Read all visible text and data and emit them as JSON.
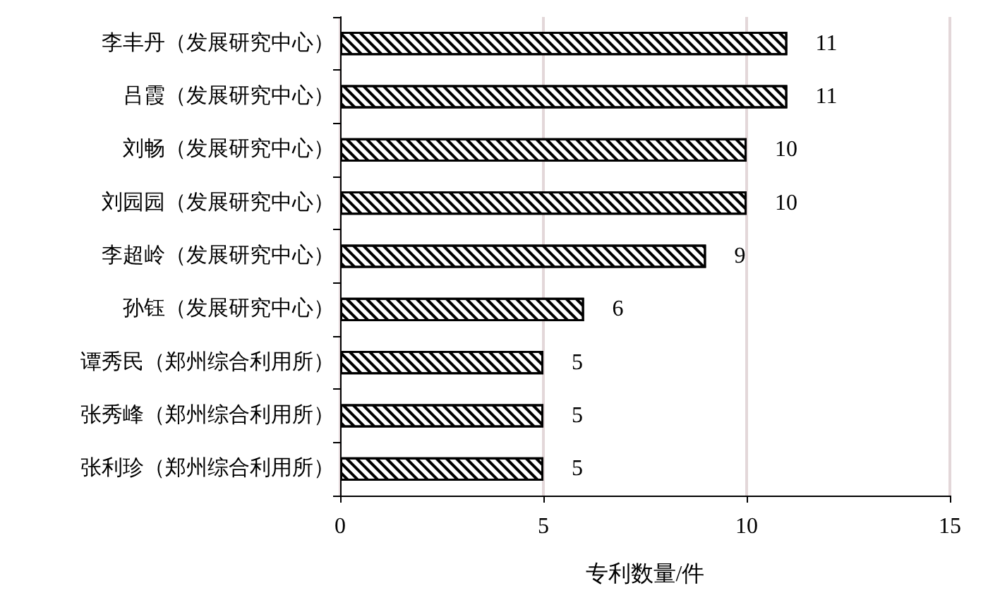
{
  "chart_data": {
    "type": "bar",
    "orientation": "horizontal",
    "categories": [
      "李丰丹（发展研究中心）",
      "吕霞（发展研究中心）",
      "刘畅（发展研究中心）",
      "刘园园（发展研究中心）",
      "李超岭（发展研究中心）",
      "孙钰（发展研究中心）",
      "谭秀民（郑州综合利用所）",
      "张秀峰（郑州综合利用所）",
      "张利珍（郑州综合利用所）"
    ],
    "values": [
      11,
      11,
      10,
      10,
      9,
      6,
      5,
      5,
      5
    ],
    "color": "#000000",
    "xlabel": "专利数量/件",
    "xlim": [
      0,
      15
    ],
    "xticks": [
      0,
      5,
      10,
      15
    ],
    "grid": "x",
    "data_labels": true
  }
}
